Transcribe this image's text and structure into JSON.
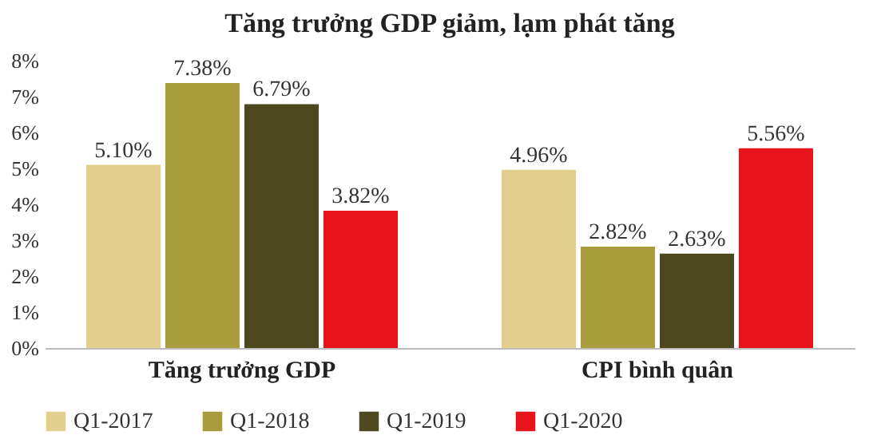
{
  "chart_data": {
    "type": "bar",
    "title": "Tăng trưởng GDP giảm, lạm phát tăng",
    "categories": [
      "Tăng trưởng GDP",
      "CPI bình quân"
    ],
    "series": [
      {
        "name": "Q1-2017",
        "color": "#e2cf8e",
        "values": [
          5.1,
          4.96
        ],
        "value_labels": [
          "5.10%",
          "4.96%"
        ]
      },
      {
        "name": "Q1-2018",
        "color": "#a89c3c",
        "values": [
          7.38,
          2.82
        ],
        "value_labels": [
          "7.38%",
          "2.82%"
        ]
      },
      {
        "name": "Q1-2019",
        "color": "#4e4820",
        "values": [
          6.79,
          2.63
        ],
        "value_labels": [
          "6.79%",
          "2.63%"
        ]
      },
      {
        "name": "Q1-2020",
        "color": "#e8141c",
        "values": [
          3.82,
          5.56
        ],
        "value_labels": [
          "3.82%",
          "5.56%"
        ]
      }
    ],
    "ylim": [
      0,
      8
    ],
    "yticks": [
      {
        "value": 0,
        "label": "0%"
      },
      {
        "value": 1,
        "label": "1%"
      },
      {
        "value": 2,
        "label": "2%"
      },
      {
        "value": 3,
        "label": "3%"
      },
      {
        "value": 4,
        "label": "4%"
      },
      {
        "value": 5,
        "label": "5%"
      },
      {
        "value": 6,
        "label": "6%"
      },
      {
        "value": 7,
        "label": "7%"
      },
      {
        "value": 8,
        "label": "8%"
      }
    ],
    "legend": "bottom"
  }
}
